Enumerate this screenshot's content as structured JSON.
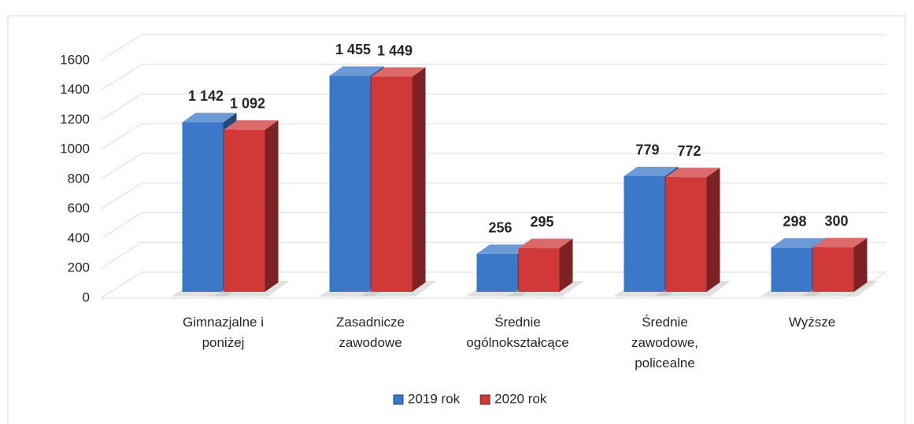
{
  "chart_data": {
    "type": "bar3d",
    "categories": [
      "Gimnazjalne i poniżej",
      "Zasadnicze zawodowe",
      "Średnie ogólnokształcące",
      "Średnie zawodowe, policealne",
      "Wyższe"
    ],
    "series": [
      {
        "name": "2019 rok",
        "color": "#3b78c8",
        "values": [
          1142,
          1455,
          256,
          779,
          298
        ],
        "value_labels": [
          "1 142",
          "1 455",
          "256",
          "779",
          "298"
        ]
      },
      {
        "name": "2020 rok",
        "color": "#d13838",
        "values": [
          1092,
          1449,
          295,
          772,
          300
        ],
        "value_labels": [
          "1 092",
          "1 449",
          "295",
          "772",
          "300"
        ]
      }
    ],
    "ylim": [
      0,
      1600
    ],
    "yticks": [
      0,
      200,
      400,
      600,
      800,
      1000,
      1200,
      1400,
      1600
    ],
    "grid": true,
    "legend": "bottom"
  }
}
